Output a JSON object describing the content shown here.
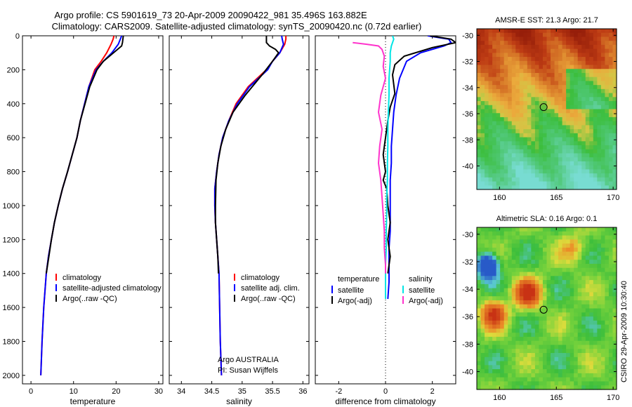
{
  "figure": {
    "title_line1": "Argo profile: CS 5901619_73 20-Apr-2009 20090422_981 35.496S 163.882E",
    "title_line2": "Climatology: CARS2009. Satellite-adjusted climatology: synTS_20090420.nc (0.72d earlier)",
    "credit_line1": "Argo AUSTRALIA",
    "credit_line2": "PI: Susan Wijffels",
    "side_label": "CSIRO 29-Apr-2009 10:30:40"
  },
  "colors": {
    "climatology": "#ff0000",
    "satellite": "#0000ff",
    "argo": "#000000",
    "sal_satellite": "#00e5e5",
    "sal_argo": "#ff33cc",
    "zero_line": "#000000"
  },
  "chart_data": [
    {
      "type": "line",
      "xlabel": "temperature",
      "ylabel": "",
      "xlim": [
        -2,
        31
      ],
      "ylim": [
        2050,
        0
      ],
      "xticks": [
        0,
        10,
        20,
        30
      ],
      "yticks": [
        0,
        200,
        400,
        600,
        800,
        1000,
        1200,
        1400,
        1600,
        1800,
        2000
      ],
      "legend": [
        "climatology",
        "satellite-adjusted climatology",
        "Argo(..raw -QC)"
      ],
      "legend_placement": "bottom-right",
      "series": [
        {
          "name": "climatology",
          "color": "climatology",
          "x": [
            19.5,
            19.3,
            18.8,
            17.8,
            16.5,
            15.0,
            13.6,
            12.6,
            11.6,
            10.8,
            9.7,
            8.6,
            7.4,
            6.4,
            5.5,
            4.8,
            4.1,
            3.6,
            3.0,
            2.6,
            2.3
          ],
          "depth": [
            0,
            20,
            50,
            100,
            150,
            200,
            300,
            400,
            500,
            600,
            700,
            800,
            900,
            1000,
            1100,
            1200,
            1300,
            1400,
            1600,
            1800,
            2000
          ]
        },
        {
          "name": "satellite-adjusted climatology",
          "color": "satellite",
          "x": [
            21.3,
            21.0,
            20.5,
            19.0,
            17.0,
            15.3,
            13.6,
            12.6,
            11.6,
            10.8,
            9.7,
            8.6,
            7.4,
            6.4,
            5.5,
            4.8,
            4.1,
            3.6,
            3.0,
            2.6,
            2.3
          ],
          "depth": [
            0,
            20,
            50,
            100,
            150,
            200,
            300,
            400,
            500,
            600,
            700,
            800,
            900,
            1000,
            1100,
            1200,
            1300,
            1400,
            1600,
            1800,
            2000
          ]
        },
        {
          "name": "Argo(..raw -QC)",
          "color": "argo",
          "x": [
            21.7,
            21.6,
            21.5,
            21.3,
            17.0,
            15.5,
            13.8,
            12.7,
            11.6,
            10.8,
            9.7,
            8.6,
            7.4,
            6.4,
            5.5,
            4.8,
            4.2,
            3.6
          ],
          "depth": [
            0,
            20,
            40,
            60,
            150,
            200,
            300,
            400,
            500,
            600,
            700,
            800,
            900,
            1000,
            1100,
            1200,
            1300,
            1400
          ]
        }
      ]
    },
    {
      "type": "line",
      "xlabel": "salinity",
      "ylabel": "",
      "xlim": [
        33.8,
        36.1
      ],
      "ylim": [
        2050,
        0
      ],
      "xticks": [
        34,
        34.5,
        35,
        35.5,
        36
      ],
      "legend": [
        "climatology",
        "satellite adj. clim.",
        "Argo(..raw -QC)"
      ],
      "legend_placement": "bottom-right",
      "series": [
        {
          "name": "climatology",
          "color": "climatology",
          "x": [
            35.72,
            35.72,
            35.7,
            35.62,
            35.5,
            35.4,
            35.1,
            34.9,
            34.78,
            34.68,
            34.62,
            34.58,
            34.55,
            34.55,
            34.56,
            34.58,
            34.6,
            34.62,
            34.63,
            34.64,
            34.66
          ],
          "depth": [
            0,
            20,
            50,
            100,
            150,
            200,
            300,
            400,
            500,
            600,
            700,
            800,
            900,
            1000,
            1100,
            1200,
            1300,
            1400,
            1600,
            1800,
            2000
          ]
        },
        {
          "name": "satellite adj. clim.",
          "color": "satellite",
          "x": [
            35.65,
            35.66,
            35.68,
            35.62,
            35.5,
            35.42,
            35.12,
            34.92,
            34.78,
            34.68,
            34.62,
            34.58,
            34.55,
            34.55,
            34.56,
            34.58,
            34.6,
            34.62,
            34.63,
            34.64,
            34.66
          ],
          "depth": [
            0,
            20,
            50,
            100,
            150,
            200,
            300,
            400,
            500,
            600,
            700,
            800,
            900,
            1000,
            1100,
            1200,
            1300,
            1400,
            1600,
            1800,
            2000
          ]
        },
        {
          "name": "Argo(..raw -QC)",
          "color": "argo",
          "x": [
            35.4,
            35.4,
            35.45,
            35.55,
            35.6,
            35.5,
            35.35,
            35.05,
            34.85,
            34.73,
            34.65,
            34.6,
            34.57,
            34.56,
            34.56,
            34.58,
            34.6,
            34.61
          ],
          "depth": [
            0,
            40,
            60,
            80,
            100,
            150,
            220,
            350,
            450,
            550,
            650,
            750,
            850,
            1000,
            1100,
            1200,
            1300,
            1400
          ]
        }
      ]
    },
    {
      "type": "line",
      "xlabel": "difference from climatology",
      "ylabel": "",
      "xlim": [
        -3,
        3
      ],
      "ylim": [
        2050,
        0
      ],
      "xticks": [
        -2,
        0,
        2
      ],
      "legend_groups": [
        {
          "title": "temperature",
          "entries": [
            "satellite",
            "Argo(-adj)"
          ]
        },
        {
          "title": "salinity",
          "entries": [
            "satellite",
            "Argo(-adj)"
          ]
        }
      ],
      "legend_placement": "bottom",
      "series": [
        {
          "name": "temperature satellite",
          "color": "satellite",
          "x": [
            1.8,
            2.7,
            2.8,
            2.5,
            1.5,
            0.9,
            0.6,
            0.45,
            0.35,
            0.3,
            0.25,
            0.25,
            0.2,
            0.2,
            0.2,
            0.2,
            0.15,
            0.15,
            0.15,
            0.1
          ],
          "depth": [
            0,
            20,
            40,
            60,
            100,
            150,
            250,
            350,
            450,
            550,
            650,
            750,
            850,
            950,
            1050,
            1150,
            1250,
            1350,
            1450,
            1550
          ]
        },
        {
          "name": "temperature Argo(-adj)",
          "color": "argo",
          "x": [
            1.9,
            2.8,
            3.0,
            2.0,
            0.8,
            0.4,
            0.3,
            0.4,
            0.2,
            0.1,
            0.0,
            -0.1,
            0.0,
            -0.1,
            0.05,
            0.1,
            0.2,
            0.1,
            0.2,
            0.1
          ],
          "depth": [
            0,
            20,
            40,
            70,
            120,
            170,
            230,
            340,
            420,
            500,
            600,
            700,
            800,
            850,
            900,
            1000,
            1100,
            1200,
            1300,
            1400
          ]
        },
        {
          "name": "salinity satellite",
          "color": "sal_satellite",
          "x": [
            0.3,
            0.35,
            0.3,
            0.25,
            0.2,
            0.2,
            0.15,
            0.15,
            0.12,
            0.1,
            0.1,
            0.08,
            0.08,
            0.05,
            0.05,
            0.03,
            0.03,
            0.0,
            0.0,
            0.0
          ],
          "depth": [
            0,
            20,
            40,
            60,
            100,
            150,
            250,
            350,
            450,
            550,
            650,
            750,
            850,
            950,
            1050,
            1150,
            1250,
            1350,
            1450,
            1550
          ]
        },
        {
          "name": "salinity Argo(-adj)",
          "color": "sal_argo",
          "x": [
            -1.4,
            -0.8,
            -0.3,
            -0.15,
            -0.05,
            -0.1,
            0.0,
            -0.2,
            -0.3,
            -0.15,
            -0.25,
            -0.3,
            -0.2,
            -0.15,
            -0.1,
            -0.05,
            -0.05,
            0.0,
            0.0
          ],
          "depth": [
            40,
            50,
            60,
            80,
            120,
            180,
            250,
            350,
            450,
            550,
            650,
            750,
            850,
            950,
            1050,
            1150,
            1250,
            1350,
            1400
          ]
        }
      ]
    },
    {
      "type": "heatmap",
      "title": "AMSR-E SST: 21.3 Argo: 21.7",
      "xlim": [
        158,
        170.3
      ],
      "ylim": [
        -41.8,
        -29.5
      ],
      "xticks": [
        160,
        165,
        170
      ],
      "yticks": [
        -30,
        -32,
        -34,
        -36,
        -38,
        -40
      ],
      "marker": {
        "lon": 163.882,
        "lat": -35.496
      }
    },
    {
      "type": "heatmap",
      "title": "Altimetric SLA: 0.16 Argo: 0.1",
      "xlim": [
        158,
        170.3
      ],
      "ylim": [
        -41.3,
        -29.5
      ],
      "xticks": [
        160,
        165,
        170
      ],
      "yticks": [
        -30,
        -32,
        -34,
        -36,
        -38,
        -40
      ],
      "marker": {
        "lon": 163.882,
        "lat": -35.496
      }
    }
  ]
}
